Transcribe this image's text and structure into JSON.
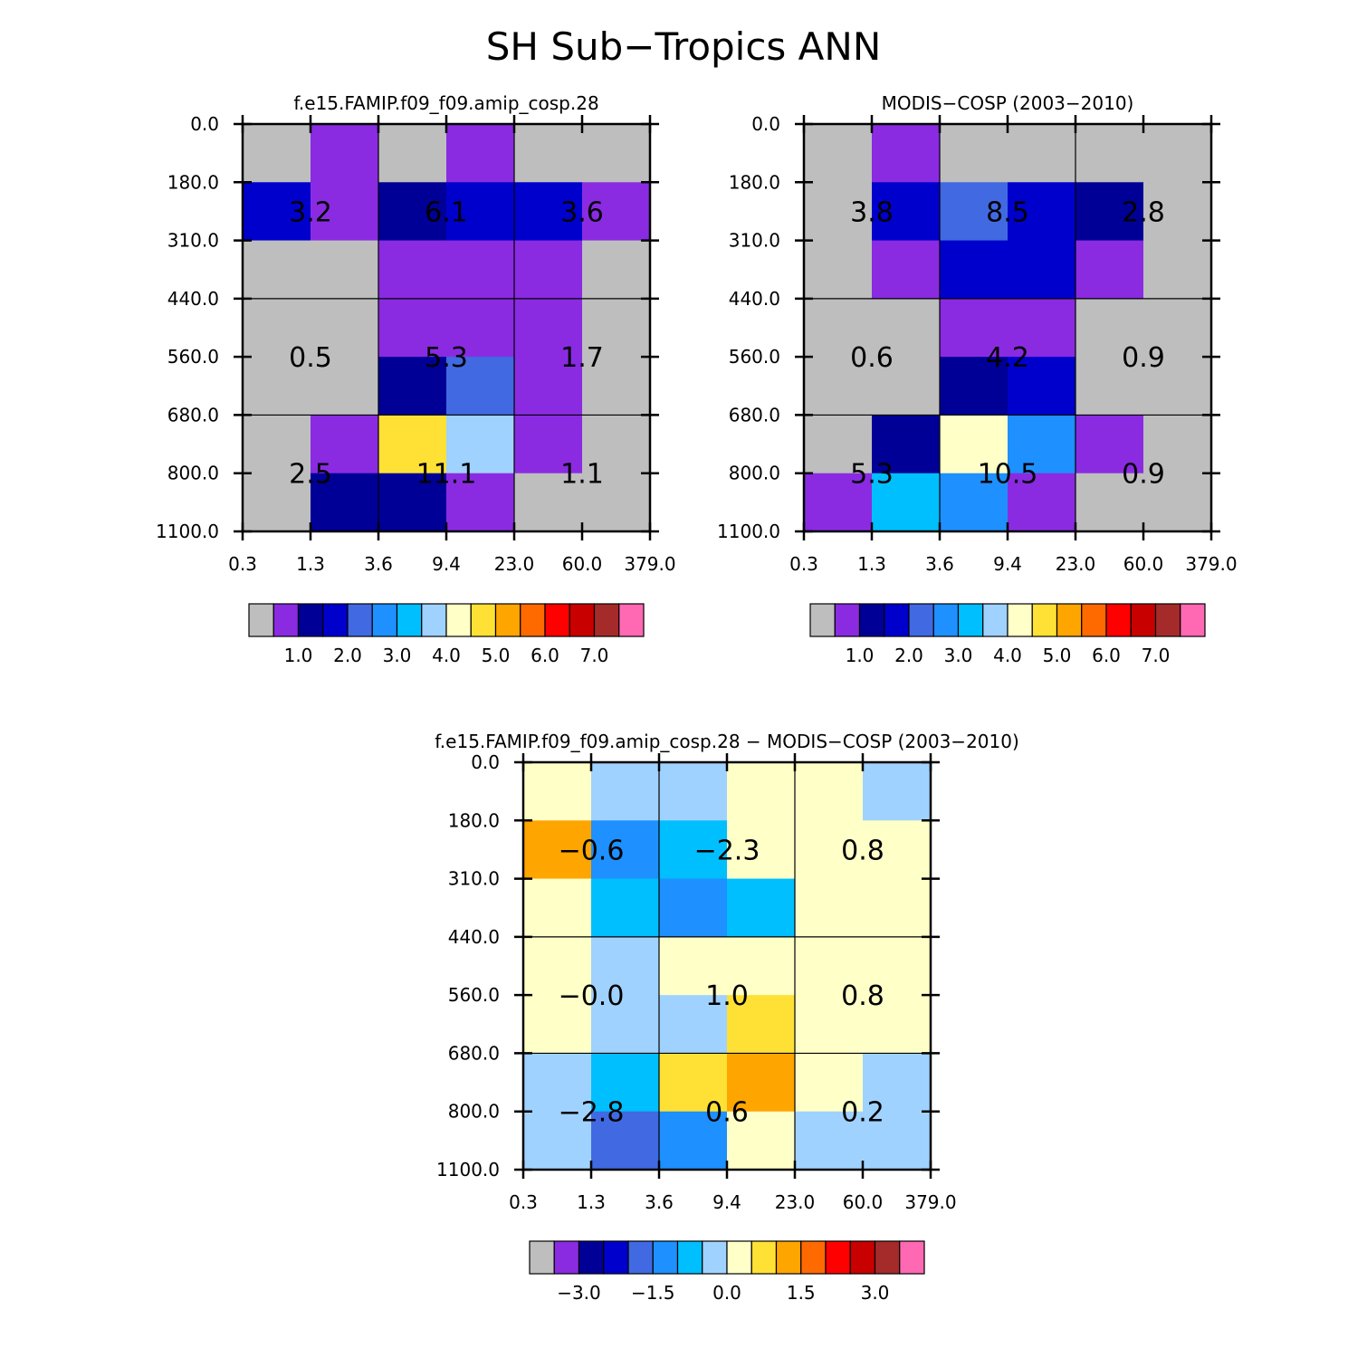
{
  "figure_title": "SH Sub−Tropics ANN",
  "colors": {
    "palette": [
      "#bebebe",
      "#8a2be2",
      "#000096",
      "#0000cd",
      "#4169e1",
      "#1e90ff",
      "#00bfff",
      "#a0d2ff",
      "#ffffc8",
      "#ffe135",
      "#ffa500",
      "#ff6a00",
      "#ff0000",
      "#c80000",
      "#a52a2a",
      "#ff69b4"
    ]
  },
  "chart_data": [
    {
      "type": "heatmap",
      "title": "f.e15.FAMIP.f09_f09.amip_cosp.28",
      "x_tick_labels": [
        "0.3",
        "1.3",
        "3.6",
        "9.4",
        "23.0",
        "60.0",
        "379.0"
      ],
      "y_tick_labels": [
        "0.0",
        "180.0",
        "310.0",
        "440.0",
        "560.0",
        "680.0",
        "800.0",
        "1100.0"
      ],
      "cells": [
        [
          0,
          1,
          0,
          1,
          0,
          0
        ],
        [
          3,
          1,
          2,
          3,
          3,
          1
        ],
        [
          0,
          0,
          1,
          1,
          1,
          0
        ],
        [
          0,
          0,
          1,
          1,
          1,
          0
        ],
        [
          0,
          0,
          2,
          4,
          1,
          0
        ],
        [
          0,
          1,
          9,
          7,
          1,
          0
        ],
        [
          0,
          2,
          2,
          1,
          0,
          0
        ]
      ],
      "group_labels": [
        {
          "col": 1,
          "row": 1.5,
          "text": "3.2"
        },
        {
          "col": 3,
          "row": 1.5,
          "text": "6.1"
        },
        {
          "col": 5,
          "row": 1.5,
          "text": "3.6"
        },
        {
          "col": 1,
          "row": 4.0,
          "text": "0.5"
        },
        {
          "col": 3,
          "row": 4.0,
          "text": "5.3"
        },
        {
          "col": 5,
          "row": 4.0,
          "text": "1.7"
        },
        {
          "col": 1,
          "row": 6.0,
          "text": "2.5"
        },
        {
          "col": 3,
          "row": 6.0,
          "text": "11.1"
        },
        {
          "col": 5,
          "row": 6.0,
          "text": "1.1"
        }
      ],
      "colorbar_labels": [
        {
          "index": 2,
          "text": "1.0"
        },
        {
          "index": 4,
          "text": "2.0"
        },
        {
          "index": 6,
          "text": "3.0"
        },
        {
          "index": 8,
          "text": "4.0"
        },
        {
          "index": 10,
          "text": "5.0"
        },
        {
          "index": 12,
          "text": "6.0"
        },
        {
          "index": 14,
          "text": "7.0"
        }
      ]
    },
    {
      "type": "heatmap",
      "title": "MODIS−COSP (2003−2010)",
      "x_tick_labels": [
        "0.3",
        "1.3",
        "3.6",
        "9.4",
        "23.0",
        "60.0",
        "379.0"
      ],
      "y_tick_labels": [
        "0.0",
        "180.0",
        "310.0",
        "440.0",
        "560.0",
        "680.0",
        "800.0",
        "1100.0"
      ],
      "cells": [
        [
          0,
          1,
          0,
          0,
          0,
          0
        ],
        [
          0,
          3,
          4,
          3,
          2,
          0
        ],
        [
          0,
          1,
          3,
          3,
          1,
          0
        ],
        [
          0,
          0,
          1,
          1,
          0,
          0
        ],
        [
          0,
          0,
          2,
          3,
          0,
          0
        ],
        [
          0,
          2,
          8,
          5,
          1,
          0
        ],
        [
          1,
          6,
          5,
          1,
          0,
          0
        ]
      ],
      "group_labels": [
        {
          "col": 1,
          "row": 1.5,
          "text": "3.8"
        },
        {
          "col": 3,
          "row": 1.5,
          "text": "8.5"
        },
        {
          "col": 5,
          "row": 1.5,
          "text": "2.8"
        },
        {
          "col": 1,
          "row": 4.0,
          "text": "0.6"
        },
        {
          "col": 3,
          "row": 4.0,
          "text": "4.2"
        },
        {
          "col": 5,
          "row": 4.0,
          "text": "0.9"
        },
        {
          "col": 1,
          "row": 6.0,
          "text": "5.3"
        },
        {
          "col": 3,
          "row": 6.0,
          "text": "10.5"
        },
        {
          "col": 5,
          "row": 6.0,
          "text": "0.9"
        }
      ],
      "colorbar_labels": [
        {
          "index": 2,
          "text": "1.0"
        },
        {
          "index": 4,
          "text": "2.0"
        },
        {
          "index": 6,
          "text": "3.0"
        },
        {
          "index": 8,
          "text": "4.0"
        },
        {
          "index": 10,
          "text": "5.0"
        },
        {
          "index": 12,
          "text": "6.0"
        },
        {
          "index": 14,
          "text": "7.0"
        }
      ]
    },
    {
      "type": "heatmap",
      "title": "f.e15.FAMIP.f09_f09.amip_cosp.28 − MODIS−COSP (2003−2010)",
      "x_tick_labels": [
        "0.3",
        "1.3",
        "3.6",
        "9.4",
        "23.0",
        "60.0",
        "379.0"
      ],
      "y_tick_labels": [
        "0.0",
        "180.0",
        "310.0",
        "440.0",
        "560.0",
        "680.0",
        "800.0",
        "1100.0"
      ],
      "cells": [
        [
          8,
          7,
          7,
          8,
          8,
          7
        ],
        [
          10,
          5,
          6,
          8,
          8,
          8
        ],
        [
          8,
          6,
          5,
          6,
          8,
          8
        ],
        [
          8,
          7,
          8,
          8,
          8,
          8
        ],
        [
          8,
          7,
          7,
          9,
          8,
          8
        ],
        [
          7,
          6,
          9,
          10,
          8,
          7
        ],
        [
          7,
          4,
          5,
          8,
          7,
          7
        ]
      ],
      "group_labels": [
        {
          "col": 1,
          "row": 1.5,
          "text": "−0.6"
        },
        {
          "col": 3,
          "row": 1.5,
          "text": "−2.3"
        },
        {
          "col": 5,
          "row": 1.5,
          "text": "0.8"
        },
        {
          "col": 1,
          "row": 4.0,
          "text": "−0.0"
        },
        {
          "col": 3,
          "row": 4.0,
          "text": "1.0"
        },
        {
          "col": 5,
          "row": 4.0,
          "text": "0.8"
        },
        {
          "col": 1,
          "row": 6.0,
          "text": "−2.8"
        },
        {
          "col": 3,
          "row": 6.0,
          "text": "0.6"
        },
        {
          "col": 5,
          "row": 6.0,
          "text": "0.2"
        }
      ],
      "colorbar_labels": [
        {
          "index": 2,
          "text": "−3.0"
        },
        {
          "index": 5,
          "text": "−1.5"
        },
        {
          "index": 8,
          "text": "0.0"
        },
        {
          "index": 11,
          "text": "1.5"
        },
        {
          "index": 14,
          "text": "3.0"
        }
      ]
    }
  ]
}
